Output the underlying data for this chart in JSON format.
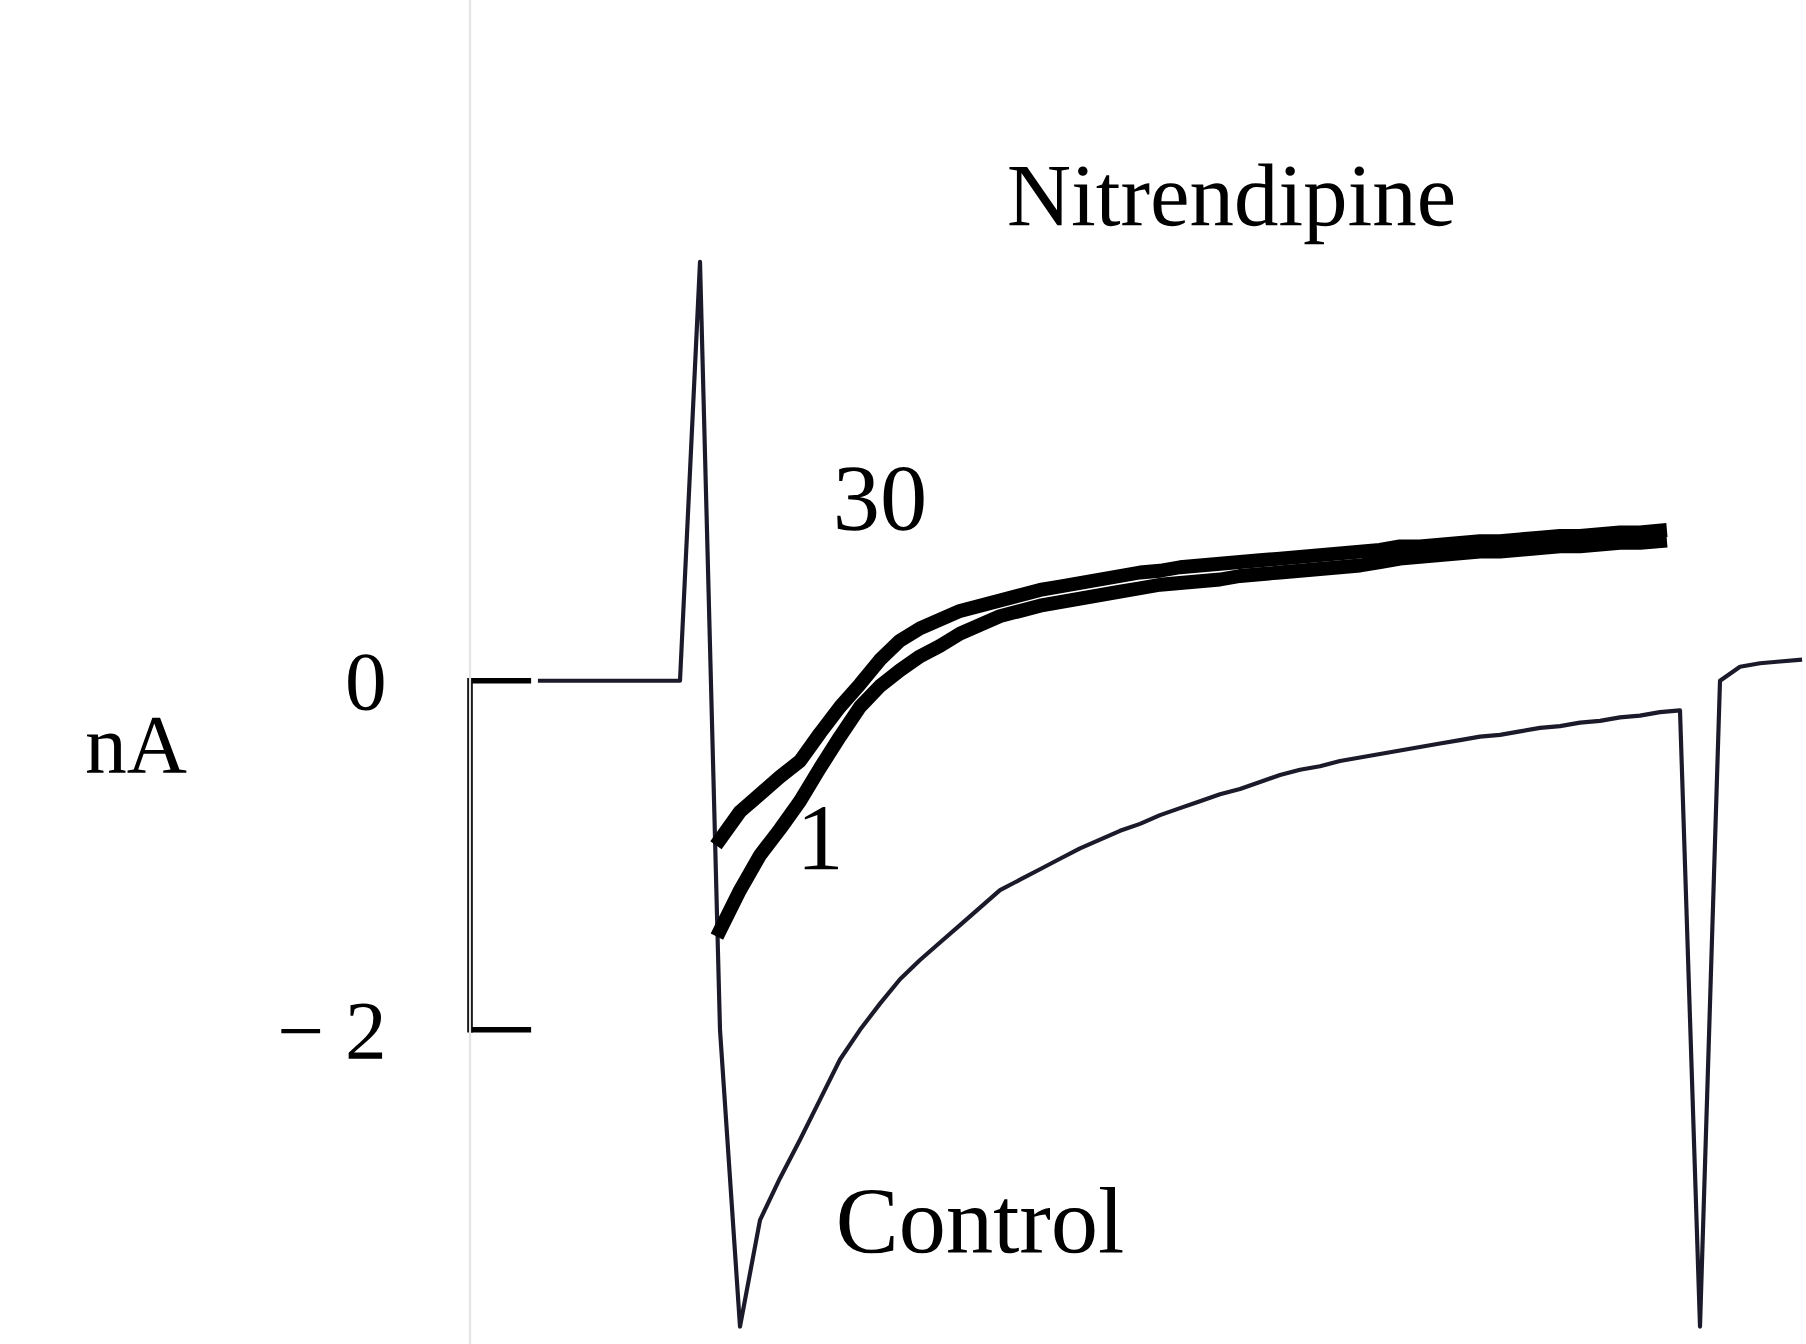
{
  "chart_data": {
    "type": "line",
    "title": "Nitrendipine",
    "ylabel": "nA",
    "categories": [
      null,
      null,
      null,
      null,
      null,
      null,
      null,
      null,
      null,
      null,
      null,
      null,
      null,
      null,
      null,
      null,
      null,
      null,
      null,
      null,
      null,
      null,
      null,
      null,
      null,
      null,
      null,
      null,
      null,
      null,
      null,
      null,
      null,
      null,
      null,
      null,
      null,
      null,
      null,
      null,
      null,
      null,
      null,
      null,
      null,
      null,
      null,
      null,
      null,
      null,
      null,
      null,
      null,
      null,
      null,
      null,
      null,
      null,
      null,
      null,
      null,
      null,
      null,
      null
    ],
    "series": [
      {
        "name": "Control",
        "color": "#1a1a2a",
        "values": [
          0,
          0,
          0,
          0,
          0,
          0,
          0,
          0,
          2.4,
          -2.0,
          -3.7,
          -3.09,
          -2.85,
          -2.63,
          -2.4,
          -2.17,
          -2.0,
          -1.85,
          -1.71,
          -1.6,
          -1.5,
          -1.4,
          -1.3,
          -1.2,
          -1.14,
          -1.08,
          -1.02,
          -0.96,
          -0.91,
          -0.86,
          -0.82,
          -0.77,
          -0.73,
          -0.69,
          -0.65,
          -0.62,
          -0.58,
          -0.54,
          -0.51,
          -0.49,
          -0.46,
          -0.44,
          -0.42,
          -0.4,
          -0.38,
          -0.36,
          -0.34,
          -0.32,
          -0.31,
          -0.29,
          -0.27,
          -0.26,
          -0.24,
          -0.23,
          -0.21,
          -0.2,
          -0.18,
          -0.17,
          -3.7,
          0.0,
          0.08,
          0.1,
          0.11,
          0.12
        ]
      },
      {
        "name": "1",
        "color": "#000000",
        "values": [
          null,
          null,
          null,
          null,
          null,
          null,
          null,
          null,
          null,
          -1.43,
          -1.2,
          -1.0,
          -0.85,
          -0.69,
          -0.5,
          -0.32,
          -0.15,
          -0.03,
          0.06,
          0.14,
          0.2,
          0.27,
          0.32,
          0.37,
          0.4,
          0.43,
          0.45,
          0.47,
          0.49,
          0.51,
          0.53,
          0.55,
          0.56,
          0.57,
          0.58,
          0.6,
          0.61,
          0.62,
          0.63,
          0.64,
          0.65,
          0.66,
          0.68,
          0.7,
          0.71,
          0.72,
          0.73,
          0.74,
          0.74,
          0.75,
          0.76,
          0.77,
          0.77,
          0.78,
          0.79,
          0.79,
          0.8,
          null,
          null,
          null,
          null,
          null,
          null,
          null
        ]
      },
      {
        "name": "30",
        "color": "#000000",
        "values": [
          null,
          null,
          null,
          null,
          null,
          null,
          null,
          null,
          null,
          -0.91,
          -0.75,
          -0.65,
          -0.55,
          -0.46,
          -0.3,
          -0.15,
          -0.02,
          0.12,
          0.23,
          0.3,
          0.35,
          0.4,
          0.43,
          0.46,
          0.49,
          0.52,
          0.54,
          0.56,
          0.58,
          0.6,
          0.62,
          0.63,
          0.65,
          0.66,
          0.67,
          0.68,
          0.69,
          0.7,
          0.71,
          0.72,
          0.73,
          0.74,
          0.75,
          0.77,
          0.77,
          0.78,
          0.79,
          0.8,
          0.8,
          0.81,
          0.82,
          0.83,
          0.83,
          0.84,
          0.85,
          0.85,
          0.86,
          null,
          null,
          null,
          null,
          null,
          null,
          null
        ]
      }
    ],
    "ylim": [
      -3.8,
      3.9
    ],
    "yticks": [
      0,
      {
        "value": -2,
        "label": "− 2"
      }
    ],
    "grid": false,
    "legend": false,
    "marker": "none",
    "line_style": "solid"
  }
}
